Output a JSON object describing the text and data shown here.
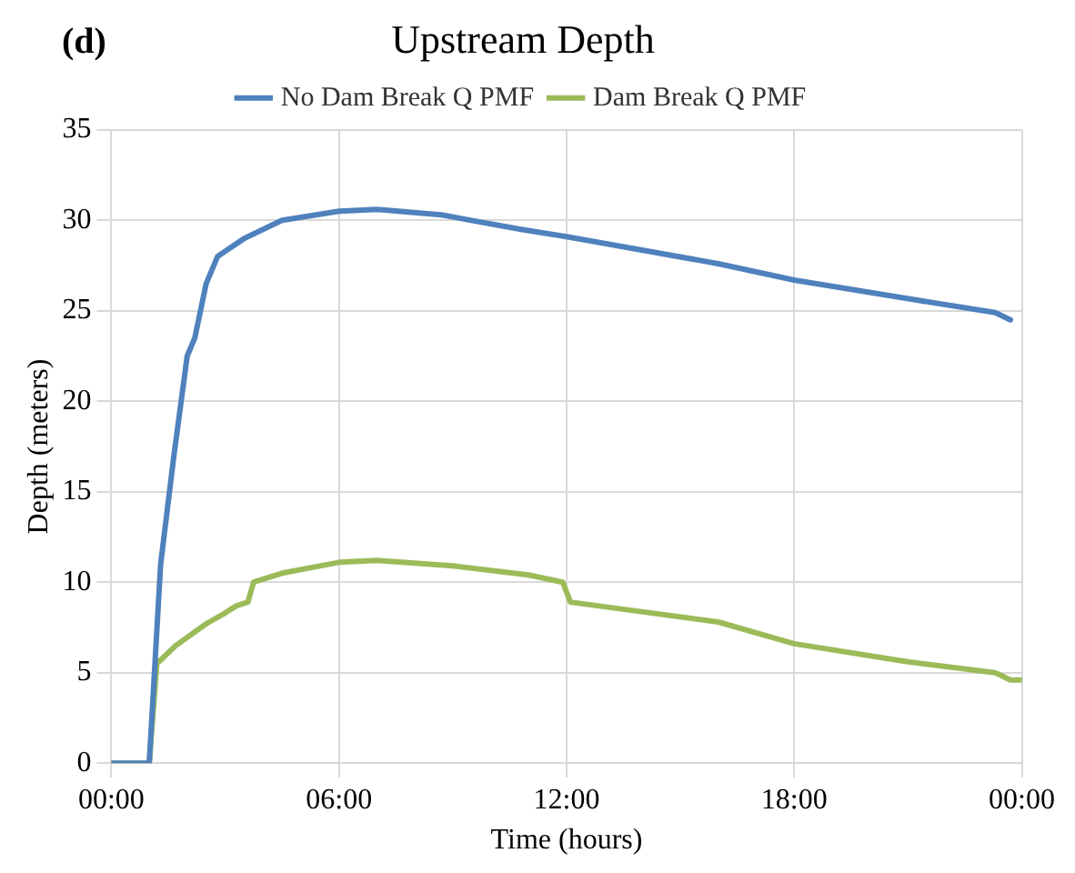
{
  "chart_data": {
    "type": "line",
    "title": "Upstream Depth",
    "xlabel": "Time (hours)",
    "ylabel": "Depth (meters)",
    "annotations": [
      "(d)"
    ],
    "xlim": [
      0,
      24
    ],
    "xticks": [
      {
        "value": 0,
        "label": "00:00"
      },
      {
        "value": 6,
        "label": "06:00"
      },
      {
        "value": 12,
        "label": "12:00"
      },
      {
        "value": 18,
        "label": "18:00"
      },
      {
        "value": 24,
        "label": "00:00"
      }
    ],
    "ylim": [
      0,
      35
    ],
    "yticks": [
      0,
      5,
      10,
      15,
      20,
      25,
      30,
      35
    ],
    "grid": true,
    "legend": "top",
    "marker": "none",
    "line_style": "solid",
    "series": [
      {
        "name": "No Dam Break Q PMF",
        "color": "#4f81bd",
        "x": [
          0,
          1,
          1.3,
          1.65,
          2,
          2.2,
          2.5,
          2.8,
          3.5,
          4.5,
          6,
          7,
          8.7,
          10.8,
          12,
          16,
          18,
          21.2,
          23.3,
          23.7
        ],
        "values": [
          0,
          0,
          11,
          17,
          22.5,
          23.5,
          26.5,
          28,
          29,
          30,
          30.5,
          30.6,
          30.3,
          29.5,
          29.1,
          27.6,
          26.7,
          25.6,
          24.9,
          24.5
        ]
      },
      {
        "name": "Dam Break Q PMF",
        "color": "#9bbb59",
        "x": [
          0,
          1,
          1.2,
          1.7,
          2.5,
          3,
          3.3,
          3.6,
          3.75,
          4.5,
          6,
          7,
          9,
          11,
          11.9,
          12.1,
          16,
          18,
          21,
          23.3,
          23.7,
          24
        ],
        "values": [
          0,
          0,
          5.5,
          6.5,
          7.7,
          8.3,
          8.7,
          8.9,
          10,
          10.5,
          11.1,
          11.2,
          10.9,
          10.4,
          10,
          8.9,
          7.8,
          6.6,
          5.6,
          5,
          4.6,
          4.6
        ]
      }
    ]
  }
}
